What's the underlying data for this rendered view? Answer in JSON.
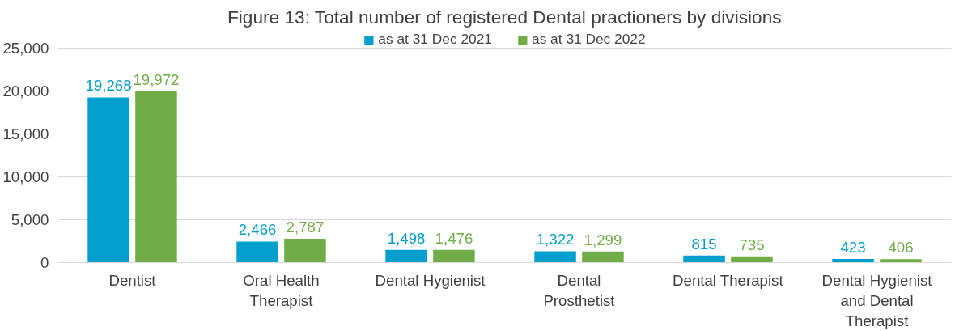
{
  "chart_data": {
    "type": "bar",
    "title": "Figure 13: Total number of registered Dental practioners by divisions",
    "categories": [
      "Dentist",
      "Oral Health Therapist",
      "Dental Hygienist",
      "Dental Prosthetist",
      "Dental Therapist",
      "Dental Hygienist and Dental Therapist"
    ],
    "series": [
      {
        "name": "as at 31 Dec 2021",
        "color": "#009fce",
        "values": [
          19268,
          2466,
          1498,
          1322,
          815,
          423
        ],
        "value_labels": [
          "19,268",
          "2,466",
          "1,498",
          "1,322",
          "815",
          "423"
        ]
      },
      {
        "name": "as at 31 Dec 2022",
        "color": "#70ad47",
        "values": [
          19972,
          2787,
          1476,
          1299,
          735,
          406
        ],
        "value_labels": [
          "19,972",
          "2,787",
          "1,476",
          "1,299",
          "735",
          "406"
        ]
      }
    ],
    "ylim": [
      0,
      25000
    ],
    "yticks": [
      {
        "value": 0,
        "label": "0"
      },
      {
        "value": 5000,
        "label": "5,000"
      },
      {
        "value": 10000,
        "label": "10,000"
      },
      {
        "value": 15000,
        "label": "15,000"
      },
      {
        "value": 20000,
        "label": "20,000"
      },
      {
        "value": 25000,
        "label": "25,000"
      }
    ],
    "grid": "y",
    "legend": "top"
  }
}
